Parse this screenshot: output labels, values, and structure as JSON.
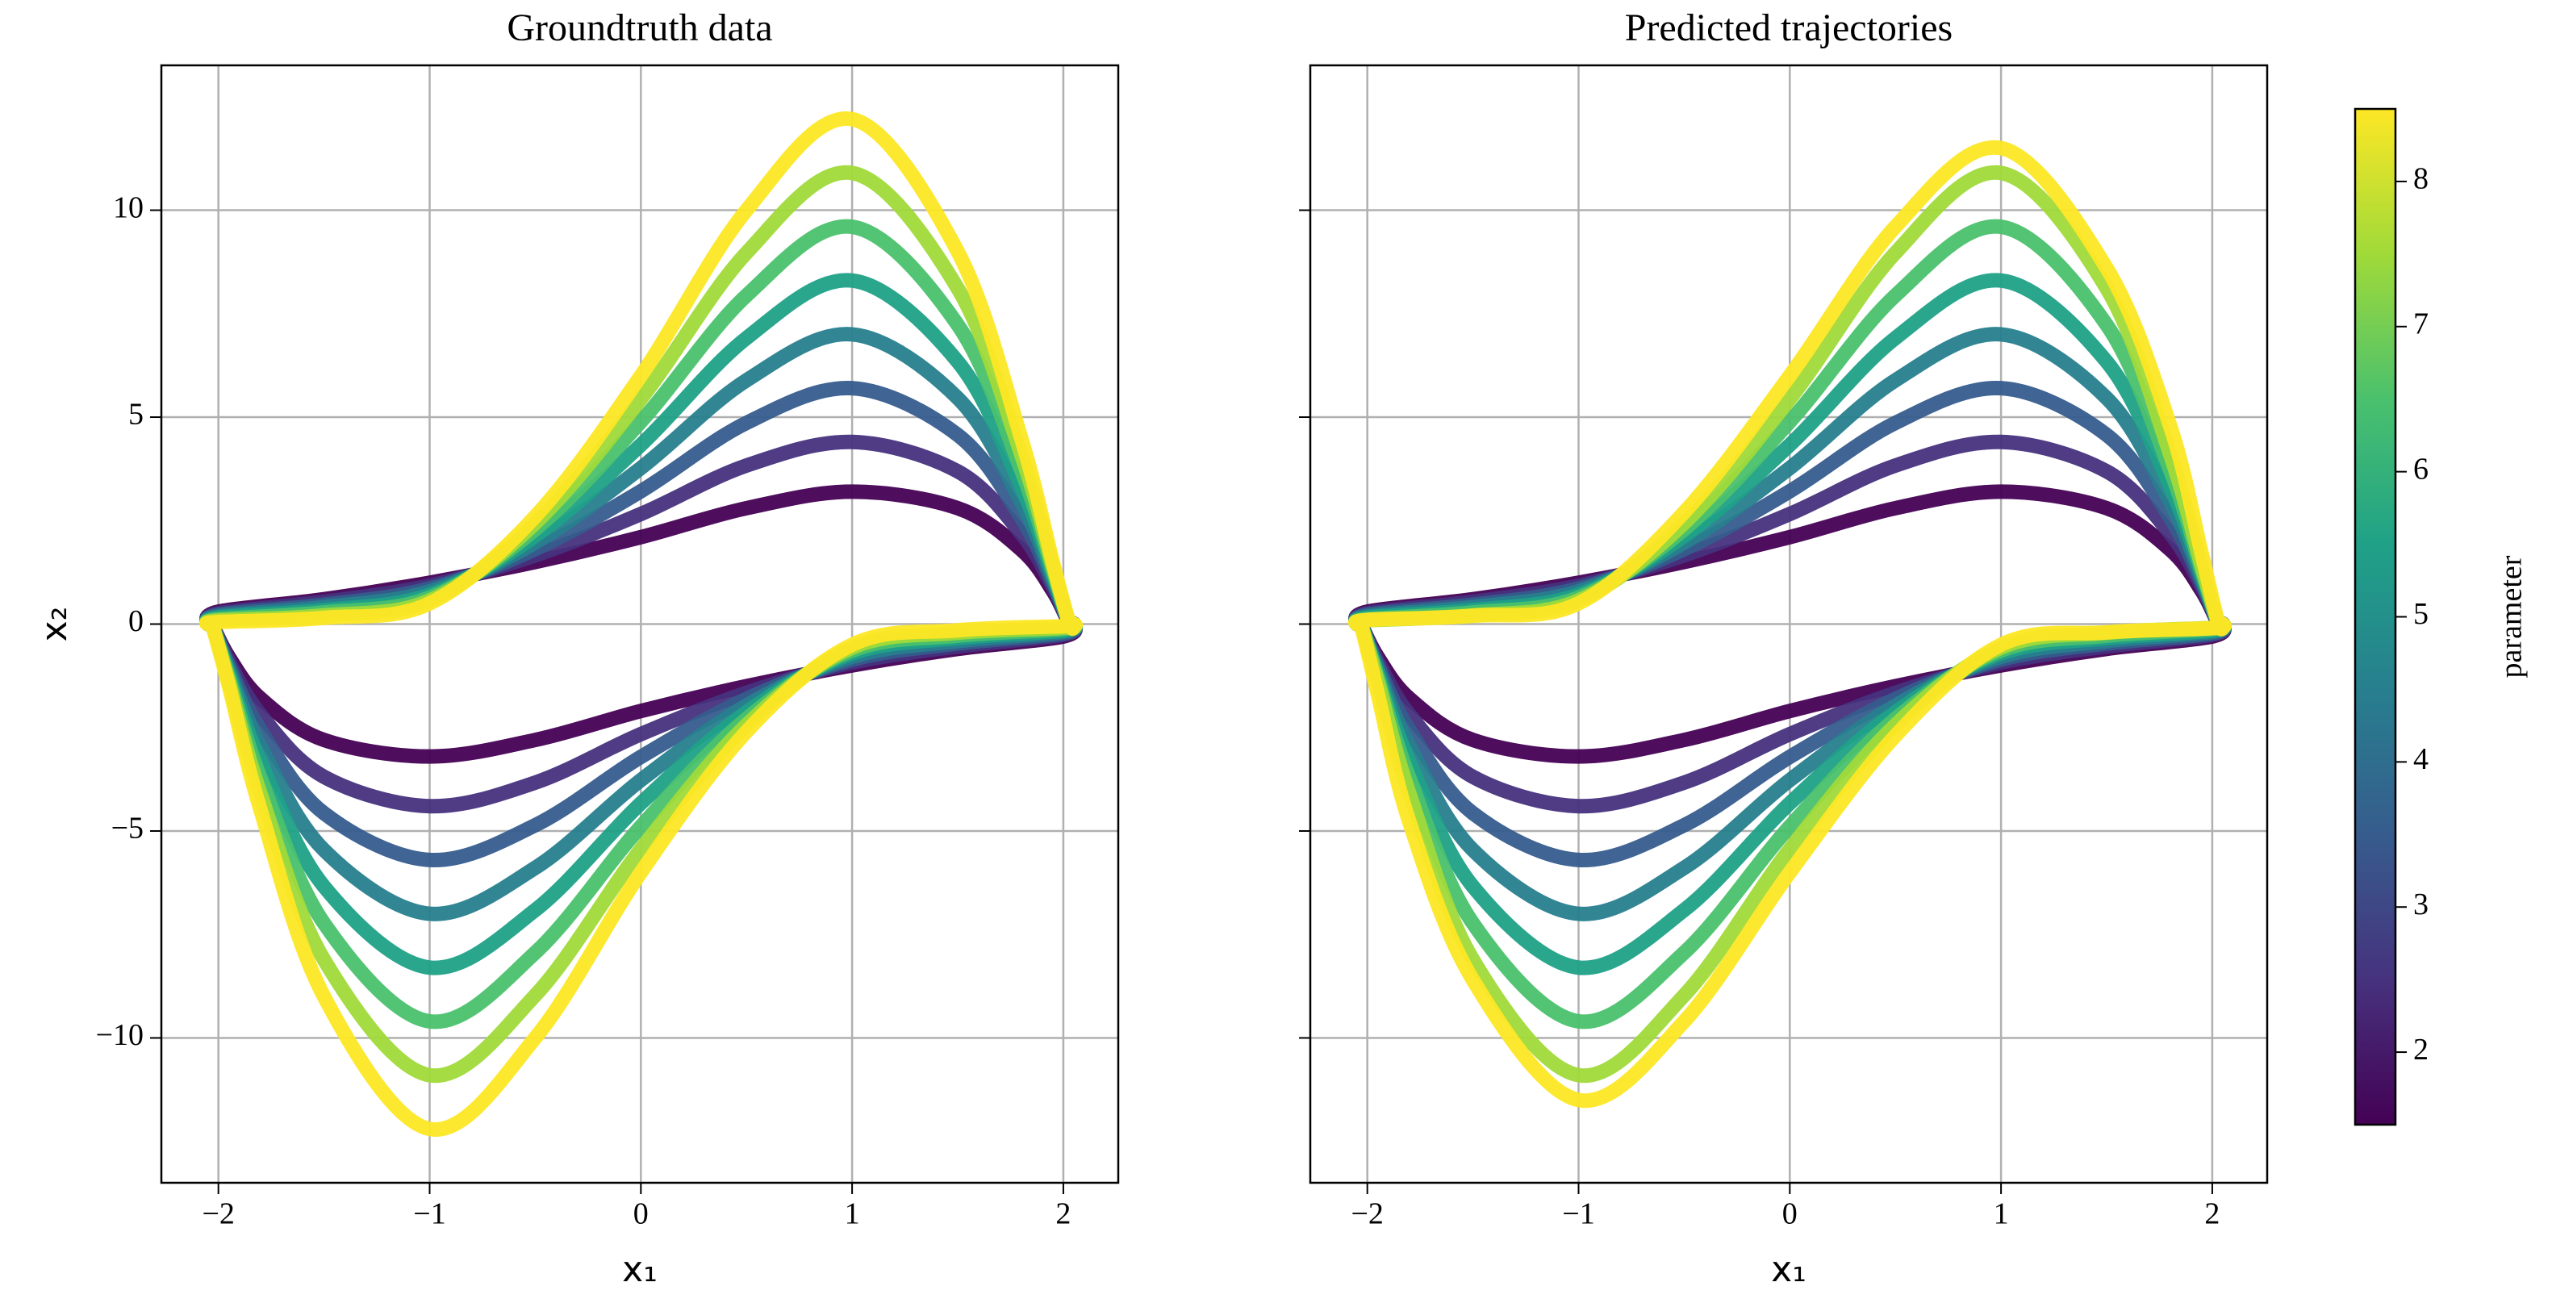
{
  "chart_data": [
    {
      "type": "line",
      "title": "Groundtruth data",
      "x_label": "x₁",
      "y_label": "x₂",
      "xlim": [
        -2.27,
        2.26
      ],
      "ylim": [
        -13.5,
        13.5
      ],
      "grid": true,
      "ytick_labels": true,
      "xticks": [
        {
          "value": -2,
          "label": "−2"
        },
        {
          "value": -1,
          "label": "−1"
        },
        0,
        1,
        2
      ],
      "yticks": [
        {
          "value": -10,
          "label": "−10"
        },
        {
          "value": -5,
          "label": "−5"
        },
        0,
        5,
        10
      ],
      "x": [
        -2.05,
        -2.0,
        -1.5,
        -1.0,
        -0.5,
        0,
        0.5,
        1.0,
        1.5,
        1.8,
        1.95,
        2.03,
        2.05,
        2.0,
        1.5,
        1.0,
        0.5,
        0,
        -0.5,
        -1.0,
        -1.5,
        -1.8,
        -1.95,
        -2.03
      ],
      "series": [
        {
          "color": "#440154",
          "values": [
            0,
            0.3,
            0.6,
            1.0,
            1.5,
            2.1,
            2.8,
            3.2,
            2.8,
            1.8,
            0.8,
            0,
            0,
            -0.3,
            -0.6,
            -1.0,
            -1.5,
            -2.1,
            -2.8,
            -3.2,
            -2.8,
            -1.8,
            -0.8,
            0
          ]
        },
        {
          "color": "#46327e",
          "values": [
            0,
            0.26,
            0.54,
            0.93,
            1.66,
            2.66,
            3.83,
            4.4,
            3.69,
            2.19,
            0.9,
            0,
            0,
            -0.26,
            -0.54,
            -0.93,
            -1.66,
            -2.66,
            -3.83,
            -4.4,
            -3.69,
            -2.19,
            -0.9,
            0
          ]
        },
        {
          "color": "#365c8d",
          "values": [
            0,
            0.23,
            0.47,
            0.86,
            1.81,
            3.21,
            4.86,
            5.7,
            4.57,
            2.57,
            1.0,
            0,
            0,
            -0.23,
            -0.47,
            -0.86,
            -1.81,
            -3.21,
            -4.86,
            -5.7,
            -4.57,
            -2.57,
            -1.0,
            0
          ]
        },
        {
          "color": "#277f8e",
          "values": [
            0,
            0.19,
            0.41,
            0.79,
            1.97,
            3.77,
            5.89,
            7.0,
            5.46,
            2.96,
            1.1,
            0,
            0,
            -0.19,
            -0.41,
            -0.79,
            -1.97,
            -3.77,
            -5.89,
            -7.0,
            -5.46,
            -2.96,
            -1.1,
            0
          ]
        },
        {
          "color": "#1fa187",
          "values": [
            0,
            0.16,
            0.34,
            0.71,
            2.13,
            4.33,
            6.91,
            8.3,
            6.34,
            3.34,
            1.2,
            0,
            0,
            -0.16,
            -0.34,
            -0.71,
            -2.13,
            -4.33,
            -6.91,
            -8.3,
            -6.34,
            -3.34,
            -1.2,
            0
          ]
        },
        {
          "color": "#4ac16d",
          "values": [
            0,
            0.12,
            0.28,
            0.64,
            2.29,
            4.89,
            7.94,
            9.6,
            7.23,
            3.73,
            1.3,
            0,
            0,
            -0.12,
            -0.28,
            -0.64,
            -2.29,
            -4.89,
            -7.94,
            -9.6,
            -7.23,
            -3.73,
            -1.3,
            0
          ]
        },
        {
          "color": "#a0da39",
          "values": [
            0,
            0.09,
            0.21,
            0.57,
            2.44,
            5.44,
            8.97,
            10.9,
            8.11,
            4.11,
            1.4,
            0,
            0,
            -0.09,
            -0.21,
            -0.57,
            -2.44,
            -5.44,
            -8.97,
            -10.9,
            -8.11,
            -4.11,
            -1.4,
            0
          ]
        },
        {
          "color": "#fde725",
          "values": [
            0,
            0.05,
            0.15,
            0.5,
            2.6,
            6.0,
            10.0,
            12.2,
            9.0,
            4.5,
            1.5,
            0,
            0,
            -0.05,
            -0.15,
            -0.5,
            -2.6,
            -6.0,
            -10.0,
            -12.2,
            -9.0,
            -4.5,
            -1.5,
            0
          ]
        }
      ]
    },
    {
      "type": "line",
      "title": "Predicted trajectories",
      "x_label": "x₁",
      "xlim": [
        -2.27,
        2.26
      ],
      "ylim": [
        -13.5,
        13.5
      ],
      "grid": true,
      "ytick_labels": false,
      "xticks": [
        {
          "value": -2,
          "label": "−2"
        },
        {
          "value": -1,
          "label": "−1"
        },
        0,
        1,
        2
      ],
      "yticks": [
        -10,
        -5,
        0,
        5,
        10
      ],
      "x": [
        -2.05,
        -2.0,
        -1.5,
        -1.0,
        -0.5,
        0,
        0.5,
        1.0,
        1.5,
        1.8,
        1.95,
        2.03,
        2.05,
        2.0,
        1.5,
        1.0,
        0.5,
        0,
        -0.5,
        -1.0,
        -1.5,
        -1.8,
        -1.95,
        -2.03
      ],
      "series": [
        {
          "color": "#440154",
          "values": [
            0,
            0.3,
            0.6,
            1.0,
            1.5,
            2.1,
            2.8,
            3.2,
            2.8,
            1.8,
            0.8,
            0,
            0,
            -0.3,
            -0.6,
            -1.0,
            -1.5,
            -2.1,
            -2.8,
            -3.2,
            -2.8,
            -1.8,
            -0.8,
            0
          ]
        },
        {
          "color": "#46327e",
          "values": [
            0,
            0.26,
            0.54,
            0.93,
            1.66,
            2.66,
            3.83,
            4.4,
            3.69,
            2.19,
            0.9,
            0,
            0,
            -0.26,
            -0.54,
            -0.93,
            -1.66,
            -2.66,
            -3.83,
            -4.4,
            -3.69,
            -2.19,
            -0.9,
            0
          ]
        },
        {
          "color": "#365c8d",
          "values": [
            0,
            0.23,
            0.47,
            0.86,
            1.81,
            3.21,
            4.86,
            5.7,
            4.57,
            2.57,
            1.0,
            0,
            0,
            -0.23,
            -0.47,
            -0.86,
            -1.81,
            -3.21,
            -4.86,
            -5.7,
            -4.57,
            -2.57,
            -1.0,
            0
          ]
        },
        {
          "color": "#277f8e",
          "values": [
            0,
            0.19,
            0.41,
            0.79,
            1.97,
            3.77,
            5.89,
            7.0,
            5.46,
            2.96,
            1.1,
            0,
            0,
            -0.19,
            -0.41,
            -0.79,
            -1.97,
            -3.77,
            -5.89,
            -7.0,
            -5.46,
            -2.96,
            -1.1,
            0
          ]
        },
        {
          "color": "#1fa187",
          "values": [
            0,
            0.16,
            0.34,
            0.71,
            2.13,
            4.33,
            6.91,
            8.3,
            6.34,
            3.34,
            1.2,
            0,
            0,
            -0.16,
            -0.34,
            -0.71,
            -2.13,
            -4.33,
            -6.91,
            -8.3,
            -6.34,
            -3.34,
            -1.2,
            0
          ]
        },
        {
          "color": "#4ac16d",
          "values": [
            0,
            0.12,
            0.28,
            0.64,
            2.29,
            4.89,
            7.94,
            9.6,
            7.23,
            3.73,
            1.3,
            0,
            0,
            -0.12,
            -0.28,
            -0.64,
            -2.29,
            -4.89,
            -7.94,
            -9.6,
            -7.23,
            -3.73,
            -1.3,
            0
          ]
        },
        {
          "color": "#a0da39",
          "values": [
            0,
            0.09,
            0.21,
            0.57,
            2.44,
            5.44,
            8.97,
            10.9,
            8.11,
            4.11,
            1.4,
            0,
            0,
            -0.09,
            -0.21,
            -0.57,
            -2.44,
            -5.44,
            -8.97,
            -10.9,
            -8.11,
            -4.11,
            -1.4,
            0
          ]
        },
        {
          "color": "#fde725",
          "values": [
            0,
            0.1,
            0.2,
            0.5,
            2.7,
            6.0,
            9.6,
            11.5,
            8.6,
            4.8,
            1.7,
            0,
            0,
            -0.1,
            -0.2,
            -0.5,
            -2.7,
            -6.0,
            -9.6,
            -11.5,
            -8.6,
            -4.8,
            -1.7,
            0
          ]
        }
      ]
    },
    {
      "type": "colorbar",
      "y_label": "parameter",
      "ylim": [
        1.5,
        8.5
      ],
      "yticks": [
        2,
        3,
        4,
        5,
        6,
        7,
        8
      ],
      "colors": [
        "#440154",
        "#46327e",
        "#365c8d",
        "#277f8e",
        "#1fa187",
        "#4ac16d",
        "#a0da39",
        "#fde725"
      ]
    }
  ]
}
